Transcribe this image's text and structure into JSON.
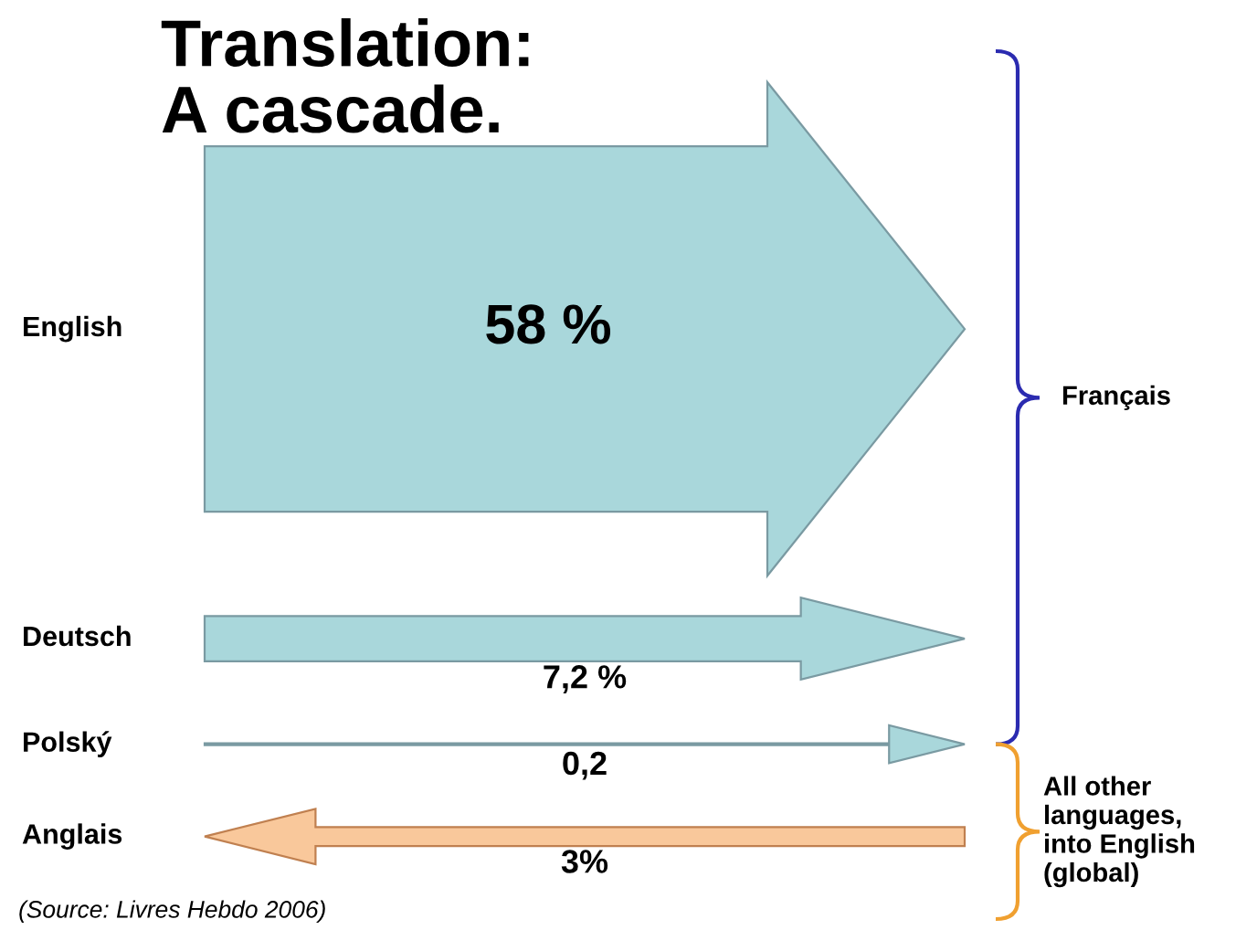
{
  "chart_data": {
    "type": "other",
    "title": "Translation:\nA cascade.",
    "categories": [
      "English",
      "Deutsch",
      "Polský",
      "Anglais"
    ],
    "values": [
      58,
      7.2,
      0.2,
      3
    ],
    "colors": [
      "#a9d7db",
      "#a9d7db",
      "#a9d7db",
      "#f9c89b"
    ],
    "value_labels": [
      "58 %",
      "7,2 %",
      "0,2",
      "3%"
    ],
    "annotations": [
      "Français",
      "All other\nlanguages,\ninto English\n(global)",
      "(Source: Livres Hebdo 2006)"
    ]
  }
}
